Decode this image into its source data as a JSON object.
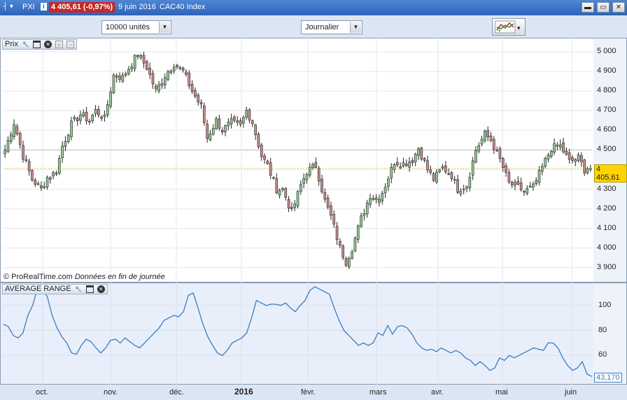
{
  "window": {
    "ticker": "PXI",
    "price_badge": "4 405,61 (-0,97%)",
    "date": "9 juin 2016",
    "instrument": "CAC40 Index"
  },
  "toolbar": {
    "units_value": "10000 unités",
    "period_value": "Journalier"
  },
  "price_panel": {
    "title": "Prix",
    "credit_site": "© ProRealTime.com",
    "credit_note": "Données en fin de journée",
    "last_value": "4 405,61"
  },
  "range_panel": {
    "title": "AVERAGE RANGE",
    "last_value": "43,170"
  },
  "colors": {
    "up": "#8fc98f",
    "down": "#c98a8a",
    "line": "#3b7bbf",
    "price_label_bg": "#ffd400",
    "range_label_bg": "#ffffff"
  },
  "chart_data": [
    {
      "type": "candlestick",
      "title": "CAC40 Index",
      "x_range": [
        "2016-09-20",
        "2016-06-09"
      ],
      "xlabels": [
        "oct.",
        "nov.",
        "déc.",
        "2016",
        "févr.",
        "mars",
        "avr.",
        "mai",
        "juin"
      ],
      "ylim": [
        3860,
        5050
      ],
      "yticks": [
        "5 000",
        "4 900",
        "4 800",
        "4 700",
        "4 600",
        "4 500",
        "4 400",
        "4 300",
        "4 200",
        "4 100",
        "4 000",
        "3 900"
      ],
      "ytick_values": [
        5000,
        4900,
        4800,
        4700,
        4600,
        4500,
        4400,
        4300,
        4200,
        4100,
        4000,
        3900
      ],
      "last": 4405.61,
      "close_path": [
        [
          0,
          4500
        ],
        [
          3,
          4640
        ],
        [
          6,
          4470
        ],
        [
          9,
          4350
        ],
        [
          12,
          4300
        ],
        [
          14,
          4360
        ],
        [
          17,
          4390
        ],
        [
          19,
          4520
        ],
        [
          22,
          4630
        ],
        [
          25,
          4680
        ],
        [
          28,
          4650
        ],
        [
          30,
          4700
        ],
        [
          33,
          4660
        ],
        [
          36,
          4880
        ],
        [
          39,
          4870
        ],
        [
          42,
          4940
        ],
        [
          44,
          4990
        ],
        [
          47,
          4920
        ],
        [
          50,
          4800
        ],
        [
          53,
          4880
        ],
        [
          56,
          4940
        ],
        [
          59,
          4900
        ],
        [
          62,
          4800
        ],
        [
          65,
          4720
        ],
        [
          67,
          4560
        ],
        [
          70,
          4650
        ],
        [
          72,
          4600
        ],
        [
          75,
          4640
        ],
        [
          78,
          4620
        ],
        [
          80,
          4700
        ],
        [
          82,
          4640
        ],
        [
          85,
          4470
        ],
        [
          87,
          4420
        ],
        [
          90,
          4300
        ],
        [
          92,
          4300
        ],
        [
          95,
          4180
        ],
        [
          98,
          4320
        ],
        [
          100,
          4390
        ],
        [
          103,
          4420
        ],
        [
          106,
          4240
        ],
        [
          108,
          4160
        ],
        [
          111,
          4000
        ],
        [
          113,
          3930
        ],
        [
          115,
          4000
        ],
        [
          118,
          4150
        ],
        [
          121,
          4270
        ],
        [
          124,
          4250
        ],
        [
          126,
          4320
        ],
        [
          129,
          4440
        ],
        [
          132,
          4430
        ],
        [
          135,
          4450
        ],
        [
          137,
          4510
        ],
        [
          140,
          4400
        ],
        [
          142,
          4350
        ],
        [
          145,
          4410
        ],
        [
          148,
          4370
        ],
        [
          150,
          4300
        ],
        [
          153,
          4320
        ],
        [
          156,
          4500
        ],
        [
          159,
          4580
        ],
        [
          161,
          4550
        ],
        [
          164,
          4450
        ],
        [
          167,
          4330
        ],
        [
          170,
          4310
        ],
        [
          172,
          4290
        ],
        [
          175,
          4310
        ],
        [
          178,
          4410
        ],
        [
          181,
          4510
        ],
        [
          184,
          4520
        ],
        [
          187,
          4440
        ],
        [
          190,
          4460
        ],
        [
          192,
          4400
        ],
        [
          194,
          4420
        ]
      ]
    },
    {
      "type": "line",
      "title": "AVERAGE RANGE",
      "x_range": [
        "2016-09-20",
        "2016-06-09"
      ],
      "ylim": [
        40,
        115
      ],
      "yticks": [
        "100",
        "80",
        "60"
      ],
      "ytick_values": [
        100,
        80,
        60
      ],
      "last": 43.17,
      "values": [
        85,
        83,
        76,
        74,
        78,
        92,
        100,
        114,
        113,
        107,
        92,
        82,
        75,
        70,
        62,
        61,
        68,
        73,
        71,
        66,
        62,
        66,
        72,
        73,
        70,
        74,
        71,
        68,
        66,
        70,
        74,
        78,
        82,
        88,
        90,
        92,
        91,
        95,
        108,
        110,
        98,
        85,
        75,
        68,
        62,
        60,
        64,
        70,
        72,
        74,
        78,
        90,
        104,
        102,
        100,
        101,
        101,
        100,
        102,
        98,
        95,
        100,
        104,
        112,
        115,
        113,
        111,
        109,
        98,
        88,
        80,
        76,
        72,
        68,
        70,
        68,
        70,
        78,
        76,
        84,
        77,
        83,
        84,
        82,
        77,
        70,
        66,
        64,
        65,
        63,
        66,
        64,
        62,
        64,
        62,
        58,
        56,
        52,
        55,
        52,
        48,
        50,
        58,
        56,
        60,
        58,
        60,
        62,
        64,
        66,
        65,
        64,
        70,
        70,
        66,
        58,
        52,
        48,
        50,
        55,
        45,
        43.17
      ]
    }
  ]
}
